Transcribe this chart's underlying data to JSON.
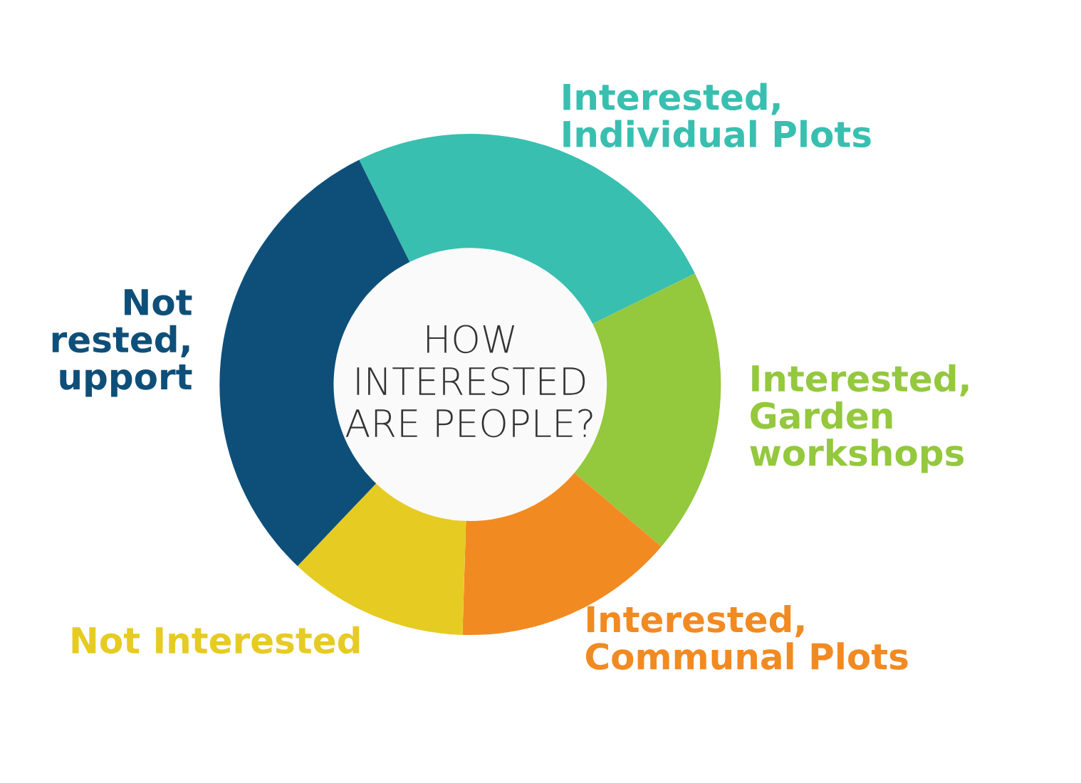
{
  "chart_data": {
    "type": "donut",
    "title": "HOW\nINTERESTED\nARE PEOPLE?",
    "categories": [
      "Interested,\nIndividual Plots",
      "Interested,\nGarden\nworkshops",
      "Interested,\nCommunal Plots",
      "Not Interested",
      "Not\nrested,\nupport"
    ],
    "values": [
      25,
      18.5,
      14.3,
      11.6,
      30.6
    ],
    "colors": [
      "#38bfb0",
      "#94c83d",
      "#f28a22",
      "#e6cb23",
      "#0e4f7a"
    ],
    "legend": false
  }
}
